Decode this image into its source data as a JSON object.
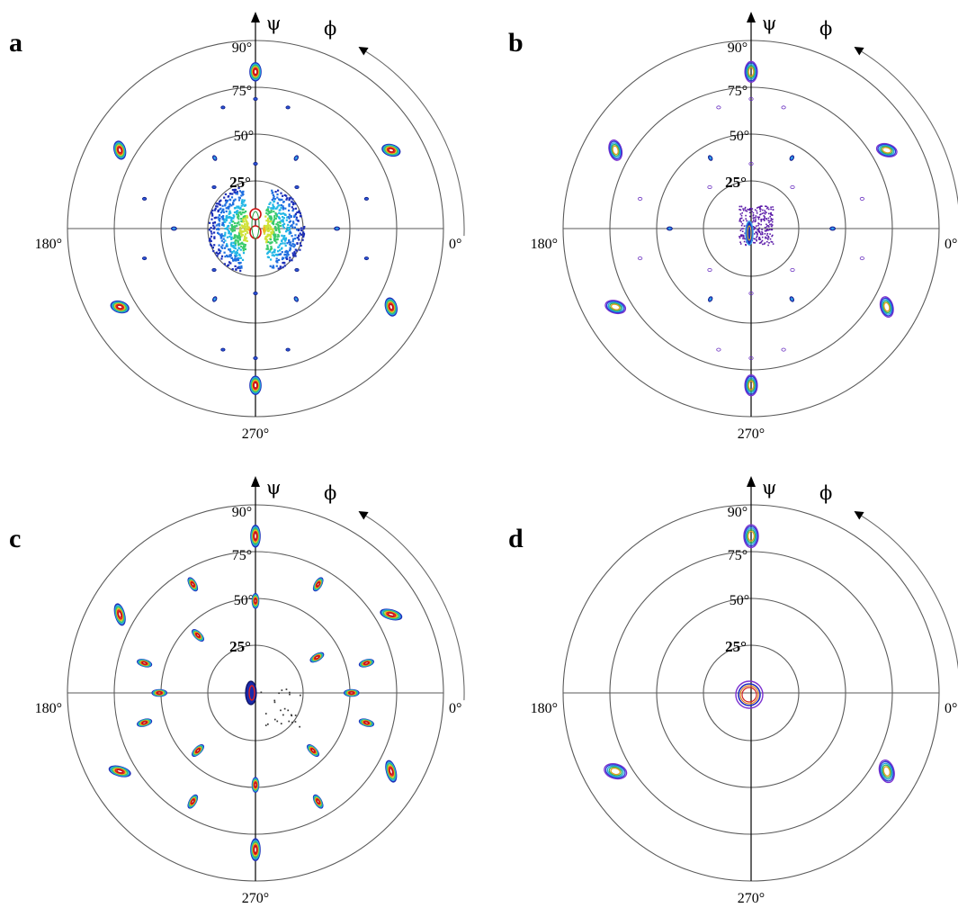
{
  "figure": {
    "panels": [
      {
        "letter": "a",
        "pattern": "a"
      },
      {
        "letter": "b",
        "pattern": "b"
      },
      {
        "letter": "c",
        "pattern": "c"
      },
      {
        "letter": "d",
        "pattern": "d"
      }
    ]
  },
  "chart_data": [
    {
      "type": "polar-pole-figure",
      "panel": "a",
      "radial_axis_symbol": "ψ",
      "azimuth_axis_symbol": "ϕ",
      "ring_values": [
        25,
        50,
        75,
        90
      ],
      "ring_labels": [
        "25°",
        "50°",
        "75°",
        "90°"
      ],
      "angle_labels": {
        "0": "0°",
        "180": "180°",
        "270": "270°"
      },
      "peaks": [
        {
          "phi": 90,
          "psi": 75
        },
        {
          "phi": 270,
          "psi": 75
        },
        {
          "phi": 30,
          "psi": 75
        },
        {
          "phi": 150,
          "psi": 75
        },
        {
          "phi": 210,
          "psi": 75
        },
        {
          "phi": 330,
          "psi": 75
        },
        {
          "phi": 0,
          "psi": 39
        },
        {
          "phi": 60,
          "psi": 39
        },
        {
          "phi": 120,
          "psi": 39
        },
        {
          "phi": 180,
          "psi": 39
        },
        {
          "phi": 240,
          "psi": 39
        },
        {
          "phi": 300,
          "psi": 39
        }
      ],
      "center_peak_psi": 0
    },
    {
      "type": "polar-pole-figure",
      "panel": "b",
      "radial_axis_symbol": "ψ",
      "azimuth_axis_symbol": "ϕ",
      "ring_values": [
        25,
        50,
        75,
        90
      ],
      "ring_labels": [
        "25°",
        "50°",
        "75°",
        "90°"
      ],
      "angle_labels": {
        "0": "0°",
        "180": "180°",
        "270": "270°"
      },
      "peaks": [
        {
          "phi": 90,
          "psi": 75
        },
        {
          "phi": 270,
          "psi": 75
        },
        {
          "phi": 30,
          "psi": 75
        },
        {
          "phi": 150,
          "psi": 75
        },
        {
          "phi": 210,
          "psi": 75
        },
        {
          "phi": 330,
          "psi": 75
        },
        {
          "phi": 0,
          "psi": 39
        },
        {
          "phi": 60,
          "psi": 39
        },
        {
          "phi": 120,
          "psi": 39
        },
        {
          "phi": 180,
          "psi": 39
        },
        {
          "phi": 240,
          "psi": 39
        },
        {
          "phi": 300,
          "psi": 39
        }
      ],
      "center_peak_psi": 0
    },
    {
      "type": "polar-pole-figure",
      "panel": "c",
      "radial_axis_symbol": "ψ",
      "azimuth_axis_symbol": "ϕ",
      "ring_values": [
        25,
        50,
        75,
        90
      ],
      "ring_labels": [
        "25°",
        "50°",
        "75°",
        "90°"
      ],
      "angle_labels": {
        "0": "0°",
        "180": "180°",
        "270": "270°"
      },
      "peaks": [
        {
          "phi": 90,
          "psi": 75
        },
        {
          "phi": 270,
          "psi": 75
        },
        {
          "phi": 30,
          "psi": 75
        },
        {
          "phi": 150,
          "psi": 75
        },
        {
          "phi": 210,
          "psi": 75
        },
        {
          "phi": 330,
          "psi": 75
        },
        {
          "phi": 60,
          "psi": 60
        },
        {
          "phi": 120,
          "psi": 60
        },
        {
          "phi": 240,
          "psi": 60
        },
        {
          "phi": 300,
          "psi": 60
        },
        {
          "phi": 15,
          "psi": 55
        },
        {
          "phi": 165,
          "psi": 55
        },
        {
          "phi": 195,
          "psi": 55
        },
        {
          "phi": 345,
          "psi": 55
        },
        {
          "phi": 0,
          "psi": 46
        },
        {
          "phi": 180,
          "psi": 46
        },
        {
          "phi": 90,
          "psi": 44
        },
        {
          "phi": 270,
          "psi": 44
        },
        {
          "phi": 135,
          "psi": 39
        },
        {
          "phi": 225,
          "psi": 39
        },
        {
          "phi": 315,
          "psi": 39
        },
        {
          "phi": 30,
          "psi": 34
        }
      ],
      "center_peak_psi": 0
    },
    {
      "type": "polar-pole-figure",
      "panel": "d",
      "radial_axis_symbol": "ψ",
      "azimuth_axis_symbol": "ϕ",
      "ring_values": [
        25,
        50,
        75,
        90
      ],
      "ring_labels": [
        "25°",
        "50°",
        "75°",
        "90°"
      ],
      "angle_labels": {
        "0": "0°",
        "180": "180°",
        "270": "270°"
      },
      "peaks": [
        {
          "phi": 90,
          "psi": 75
        },
        {
          "phi": 210,
          "psi": 75
        },
        {
          "phi": 330,
          "psi": 75
        }
      ],
      "center_peak_psi": 0
    }
  ]
}
